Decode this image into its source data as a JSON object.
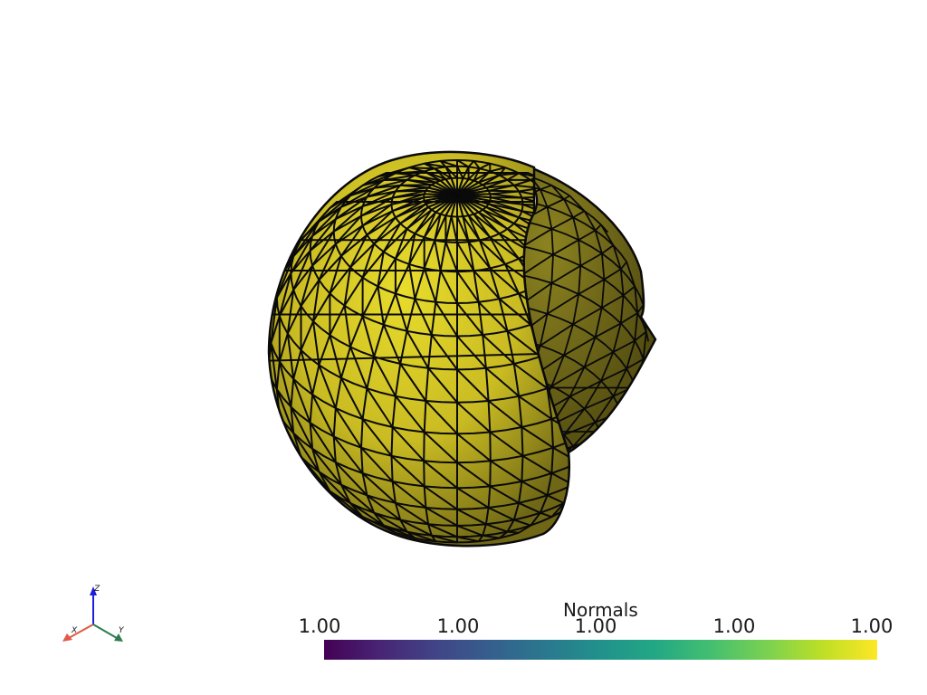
{
  "scene": {
    "surface_color": "#ddd22a",
    "surface_shadow": "#6b6418",
    "edge_color": "#0a0a0a",
    "background": "#ffffff"
  },
  "scalar_bar": {
    "title": "Normals",
    "ticks": [
      "1.00",
      "1.00",
      "1.00",
      "1.00",
      "1.00"
    ],
    "colormap": "viridis"
  },
  "axes_widget": {
    "x_label": "X",
    "y_label": "Y",
    "z_label": "Z",
    "x_color": "#e05a45",
    "y_color": "#2e7d4f",
    "z_color": "#1e1ee0"
  }
}
